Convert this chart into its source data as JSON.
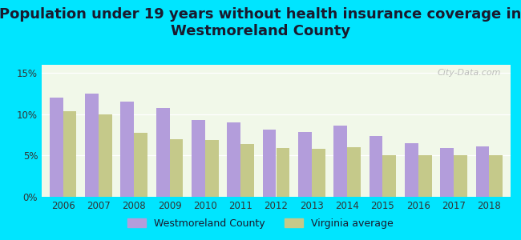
{
  "title": "Population under 19 years without health insurance coverage in\nWestmoreland County",
  "years": [
    2006,
    2007,
    2008,
    2009,
    2010,
    2011,
    2012,
    2013,
    2014,
    2015,
    2016,
    2017,
    2018
  ],
  "westmoreland": [
    12.0,
    12.5,
    11.5,
    10.8,
    9.3,
    9.0,
    8.1,
    7.9,
    8.6,
    7.4,
    6.5,
    5.9,
    6.1
  ],
  "virginia": [
    10.4,
    10.0,
    7.8,
    7.0,
    6.9,
    6.4,
    5.9,
    5.8,
    6.0,
    5.0,
    5.0,
    5.0,
    5.0
  ],
  "bar_color_westmoreland": "#b39ddb",
  "bar_color_virginia": "#c5c98a",
  "background_outer": "#00e5ff",
  "background_plot": "#f1f8e9",
  "title_fontsize": 13,
  "ylabel_ticks": [
    "0%",
    "5%",
    "10%",
    "15%"
  ],
  "yticks": [
    0,
    5,
    10,
    15
  ],
  "ylim": [
    0,
    16
  ],
  "legend_westmoreland": "Westmoreland County",
  "legend_virginia": "Virginia average",
  "watermark": "City-Data.com"
}
